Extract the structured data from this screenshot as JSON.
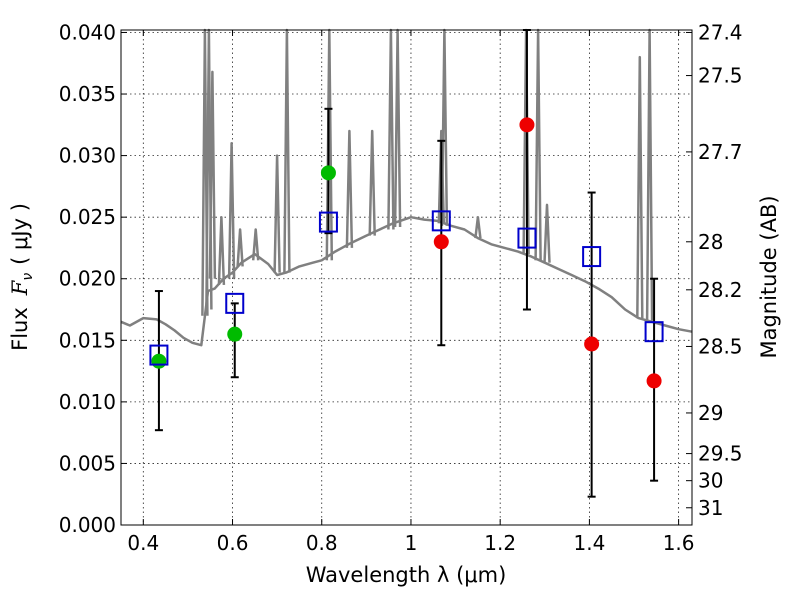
{
  "chart_data": {
    "type": "scatter",
    "xlabel": "Wavelength  λ (μm)",
    "ylabel": "Flux  F_ν  ( μJy )",
    "ylabel_parts": {
      "prefix": "Flux",
      "symbol": "F",
      "subscript": "ν",
      "unit": "( μJy )"
    },
    "y2label": "Magnitude (AB)",
    "xlim": [
      0.35,
      1.63
    ],
    "ylim": [
      0.0,
      0.0402
    ],
    "grid": true,
    "x_ticks": [
      0.4,
      0.6,
      0.8,
      1.0,
      1.2,
      1.4,
      1.6
    ],
    "x_tick_labels": [
      "0.4",
      "0.6",
      "0.8",
      "1",
      "1.2",
      "1.4",
      "1.6"
    ],
    "y_ticks": [
      0.0,
      0.005,
      0.01,
      0.015,
      0.02,
      0.025,
      0.03,
      0.035,
      0.04
    ],
    "y_tick_labels": [
      "0.000",
      "0.005",
      "0.010",
      "0.015",
      "0.020",
      "0.025",
      "0.030",
      "0.035",
      "0.040"
    ],
    "mag_ticks": [
      {
        "label": "27.4",
        "flux": 0.04
      },
      {
        "label": "27.5",
        "flux": 0.0365
      },
      {
        "label": "27.7",
        "flux": 0.0303
      },
      {
        "label": "28",
        "flux": 0.023
      },
      {
        "label": "28.2",
        "flux": 0.0191
      },
      {
        "label": "28.5",
        "flux": 0.0145
      },
      {
        "label": "29",
        "flux": 0.0091
      },
      {
        "label": "29.5",
        "flux": 0.0058
      },
      {
        "label": "30",
        "flux": 0.0036
      },
      {
        "label": "31",
        "flux": 0.0014
      }
    ],
    "series": [
      {
        "kind": "line",
        "color": "#808080",
        "x": [
          0.35,
          0.37,
          0.4,
          0.43,
          0.45,
          0.47,
          0.49,
          0.51,
          0.53,
          0.545,
          0.56,
          0.58,
          0.6,
          0.62,
          0.65,
          0.68,
          0.7,
          0.72,
          0.75,
          0.78,
          0.8,
          0.83,
          0.86,
          0.9,
          0.93,
          0.96,
          1.0,
          1.03,
          1.06,
          1.09,
          1.12,
          1.15,
          1.18,
          1.21,
          1.24,
          1.27,
          1.3,
          1.33,
          1.36,
          1.39,
          1.42,
          1.45,
          1.48,
          1.51,
          1.54,
          1.57,
          1.6,
          1.63
        ],
        "y": [
          0.0165,
          0.0162,
          0.0168,
          0.0167,
          0.0163,
          0.0158,
          0.0152,
          0.0148,
          0.0146,
          0.019,
          0.0192,
          0.02,
          0.0205,
          0.0213,
          0.022,
          0.0212,
          0.0203,
          0.0205,
          0.021,
          0.0213,
          0.0215,
          0.0222,
          0.0228,
          0.0235,
          0.024,
          0.0245,
          0.025,
          0.0248,
          0.0247,
          0.0243,
          0.024,
          0.0233,
          0.0228,
          0.0225,
          0.0222,
          0.0218,
          0.0213,
          0.0208,
          0.0203,
          0.0198,
          0.0192,
          0.0185,
          0.0175,
          0.0168,
          0.0165,
          0.0162,
          0.0159,
          0.0157
        ]
      },
      {
        "kind": "open-square",
        "color": "#0000cc",
        "x": [
          0.435,
          0.605,
          0.815,
          1.068,
          1.26,
          1.405,
          1.545
        ],
        "y": [
          0.0138,
          0.018,
          0.0246,
          0.0247,
          0.0233,
          0.0218,
          0.0157
        ],
        "yerr_low": [
          0.0061,
          0.006,
          0.0009,
          0.0101,
          0.0058,
          0.0195,
          0.0121
        ],
        "yerr_high": [
          0.0052,
          0.0,
          0.0092,
          0.0065,
          0.0169,
          0.0052,
          0.0043
        ]
      },
      {
        "kind": "filled-circle",
        "color": "#00bb00",
        "x": [
          0.435,
          0.605,
          0.815
        ],
        "y": [
          0.0133,
          0.0155,
          0.0286
        ]
      },
      {
        "kind": "filled-circle",
        "color": "#ee0000",
        "x": [
          1.068,
          1.26,
          1.405,
          1.545
        ],
        "y": [
          0.023,
          0.0325,
          0.0147,
          0.0117
        ]
      }
    ],
    "emission_lines": [
      {
        "x": 0.538,
        "base": 0.017,
        "peak": 0.0402
      },
      {
        "x": 0.547,
        "base": 0.0175,
        "peak": 0.0402
      },
      {
        "x": 0.555,
        "base": 0.02,
        "peak": 0.0368
      },
      {
        "x": 0.575,
        "base": 0.0195,
        "peak": 0.025
      },
      {
        "x": 0.598,
        "base": 0.02,
        "peak": 0.031
      },
      {
        "x": 0.617,
        "base": 0.021,
        "peak": 0.024
      },
      {
        "x": 0.652,
        "base": 0.0215,
        "peak": 0.024
      },
      {
        "x": 0.7,
        "base": 0.0205,
        "peak": 0.03
      },
      {
        "x": 0.722,
        "base": 0.0205,
        "peak": 0.0402
      },
      {
        "x": 0.817,
        "base": 0.0215,
        "peak": 0.0402
      },
      {
        "x": 0.862,
        "base": 0.0225,
        "peak": 0.032
      },
      {
        "x": 0.913,
        "base": 0.0235,
        "peak": 0.032
      },
      {
        "x": 0.955,
        "base": 0.024,
        "peak": 0.0402
      },
      {
        "x": 0.97,
        "base": 0.0242,
        "peak": 0.0402
      },
      {
        "x": 1.068,
        "base": 0.0245,
        "peak": 0.032
      },
      {
        "x": 1.075,
        "base": 0.0243,
        "peak": 0.0402
      },
      {
        "x": 1.15,
        "base": 0.0233,
        "peak": 0.025
      },
      {
        "x": 1.258,
        "base": 0.022,
        "peak": 0.0402
      },
      {
        "x": 1.285,
        "base": 0.0215,
        "peak": 0.0402
      },
      {
        "x": 1.305,
        "base": 0.0213,
        "peak": 0.026
      },
      {
        "x": 1.513,
        "base": 0.0168,
        "peak": 0.038
      },
      {
        "x": 1.535,
        "base": 0.0166,
        "peak": 0.0402
      }
    ]
  }
}
